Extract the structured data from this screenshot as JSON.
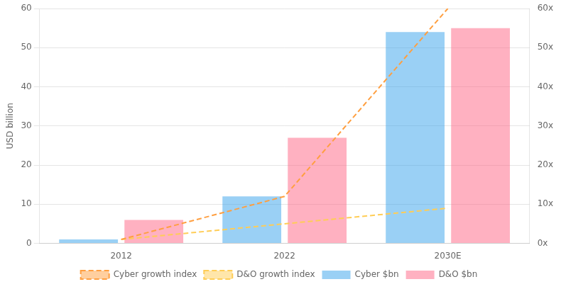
{
  "chart_data": {
    "type": "bar",
    "categories": [
      "2012",
      "2022",
      "2030E"
    ],
    "series": [
      {
        "name": "Cyber $bn",
        "type": "bar",
        "values": [
          1,
          12,
          54
        ]
      },
      {
        "name": "D&O $bn",
        "type": "bar",
        "values": [
          6,
          27,
          55
        ]
      },
      {
        "name": "Cyber growth index",
        "type": "line",
        "axis": "y2",
        "line_style": "dashed",
        "marker": "none",
        "values": [
          1,
          12,
          60
        ]
      },
      {
        "name": "D&O growth index",
        "type": "line",
        "axis": "y2",
        "line_style": "dashed",
        "marker": "none",
        "values": [
          1,
          5,
          9
        ]
      }
    ],
    "ylabel": "USD billion",
    "ylim": [
      0,
      60
    ],
    "yticks": [
      0,
      10,
      20,
      30,
      40,
      50,
      60
    ],
    "y2lim": [
      0,
      60
    ],
    "y2ticks": [
      {
        "value": 0,
        "label": "0x"
      },
      {
        "value": 10,
        "label": "10x"
      },
      {
        "value": 20,
        "label": "20x"
      },
      {
        "value": 30,
        "label": "30x"
      },
      {
        "value": 40,
        "label": "40x"
      },
      {
        "value": 50,
        "label": "50x"
      },
      {
        "value": 60,
        "label": "60x"
      }
    ],
    "grid": true,
    "legend": "bottom"
  }
}
